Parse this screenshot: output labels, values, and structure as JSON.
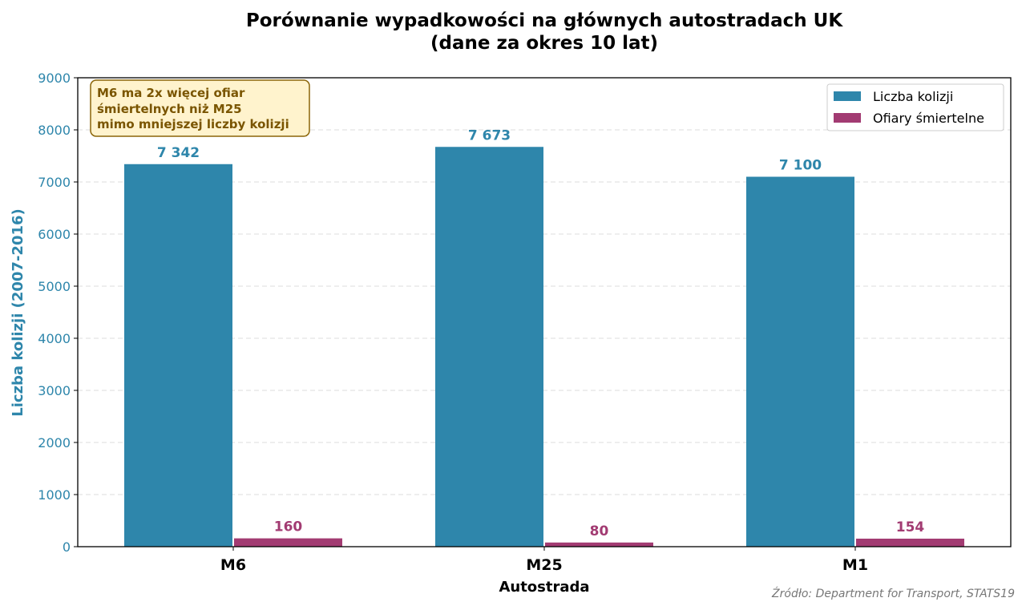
{
  "chart_data": {
    "type": "bar",
    "title": [
      "Porównanie wypadkowości na głównych autostradach UK",
      "(dane za okres 10 lat)"
    ],
    "xlabel": "Autostrada",
    "ylabel": "Liczba kolizji (2007-2016)",
    "ylim": [
      0,
      9000
    ],
    "yticks": [
      0,
      1000,
      2000,
      3000,
      4000,
      5000,
      6000,
      7000,
      8000,
      9000
    ],
    "grid": "horizontal dashed",
    "legend_position": "top-right",
    "categories": [
      "M6",
      "M25",
      "M1"
    ],
    "series": [
      {
        "name": "Liczba kolizji",
        "color": "#2E86AB",
        "values": [
          7342,
          7673,
          7100
        ],
        "labels": [
          "7 342",
          "7 673",
          "7 100"
        ]
      },
      {
        "name": "Ofiary śmiertelne",
        "color": "#A23B72",
        "values": [
          160,
          80,
          154
        ],
        "labels": [
          "160",
          "80",
          "154"
        ]
      }
    ],
    "annotation": [
      "M6 ma 2x więcej ofiar",
      "śmiertelnych niż M25",
      "mimo mniejszej liczby kolizji"
    ],
    "source": "Źródło: Department for Transport, STATS19"
  }
}
